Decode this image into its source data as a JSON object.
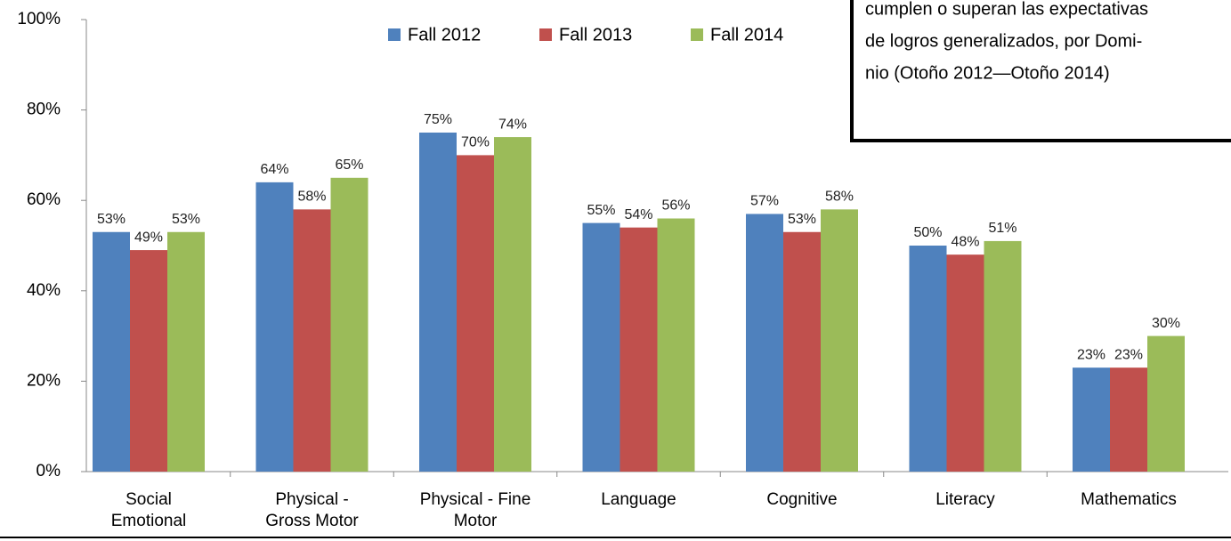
{
  "chart_data": {
    "type": "bar",
    "annotation": [
      "cumplen o superan las expectativas",
      "de logros generalizados, por Domi-",
      "nio (Otoño  2012—Otoño 2014)"
    ],
    "categories": [
      [
        "Social",
        "Emotional"
      ],
      [
        "Physical -",
        "Gross Motor"
      ],
      [
        "Physical - Fine",
        "Motor"
      ],
      [
        "Language"
      ],
      [
        "Cognitive"
      ],
      [
        "Literacy"
      ],
      [
        "Mathematics"
      ]
    ],
    "series": [
      {
        "name": "Fall 2012",
        "color": "#4f81bd",
        "values": [
          53,
          64,
          75,
          55,
          57,
          50,
          23
        ],
        "value_labels": [
          "53%",
          "64%",
          "75%",
          "55%",
          "57%",
          "50%",
          "23%"
        ]
      },
      {
        "name": "Fall 2013",
        "color": "#c0504d",
        "values": [
          49,
          58,
          70,
          54,
          53,
          48,
          23
        ],
        "value_labels": [
          "49%",
          "58%",
          "70%",
          "54%",
          "53%",
          "48%",
          "23%"
        ]
      },
      {
        "name": "Fall 2014",
        "color": "#9bbb59",
        "values": [
          53,
          65,
          74,
          56,
          58,
          51,
          30
        ],
        "value_labels": [
          "53%",
          "65%",
          "74%",
          "56%",
          "58%",
          "51%",
          "30%"
        ]
      }
    ],
    "ylim": [
      0,
      100
    ],
    "yticks": [
      {
        "value": 0,
        "label": "0%"
      },
      {
        "value": 20,
        "label": "20%"
      },
      {
        "value": 40,
        "label": "40%"
      },
      {
        "value": 60,
        "label": "60%"
      },
      {
        "value": 80,
        "label": "80%"
      },
      {
        "value": 100,
        "label": "100%"
      }
    ],
    "legend": "top"
  }
}
